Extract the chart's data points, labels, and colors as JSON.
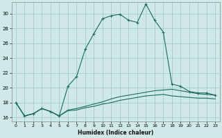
{
  "xlabel": "Humidex (Indice chaleur)",
  "background_color": "#cfe8e8",
  "grid_color": "#aacfcf",
  "line_color": "#1a6b5a",
  "xlim": [
    -0.5,
    23.5
  ],
  "ylim": [
    15.5,
    31.5
  ],
  "yticks": [
    16,
    18,
    20,
    22,
    24,
    26,
    28,
    30
  ],
  "xticks": [
    0,
    1,
    2,
    3,
    4,
    5,
    6,
    7,
    8,
    9,
    10,
    11,
    12,
    13,
    14,
    15,
    16,
    17,
    18,
    19,
    20,
    21,
    22,
    23
  ],
  "main_curve_x": [
    0,
    1,
    2,
    3,
    4,
    5,
    6,
    7,
    8,
    9,
    10,
    11,
    12,
    13,
    14,
    15,
    16,
    17,
    18,
    19,
    20,
    21,
    22,
    23
  ],
  "main_curve_y": [
    18.0,
    16.2,
    16.5,
    17.2,
    16.8,
    16.2,
    20.2,
    21.5,
    25.2,
    27.3,
    29.3,
    29.7,
    29.9,
    29.1,
    28.8,
    31.3,
    29.1,
    27.5,
    20.5,
    20.2,
    19.5,
    19.3,
    19.3,
    19.0
  ],
  "lower_curve1_x": [
    0,
    1,
    2,
    3,
    4,
    5,
    6,
    7,
    8,
    9,
    10,
    11,
    12,
    13,
    14,
    15,
    16,
    17,
    18,
    19,
    20,
    21,
    22,
    23
  ],
  "lower_curve1_y": [
    18.0,
    16.2,
    16.5,
    17.2,
    16.8,
    16.2,
    17.0,
    17.2,
    17.5,
    17.8,
    18.1,
    18.5,
    18.8,
    19.0,
    19.2,
    19.4,
    19.6,
    19.7,
    19.8,
    19.6,
    19.4,
    19.2,
    19.1,
    19.0
  ],
  "lower_curve2_x": [
    0,
    1,
    2,
    3,
    4,
    5,
    6,
    7,
    8,
    9,
    10,
    11,
    12,
    13,
    14,
    15,
    16,
    17,
    18,
    19,
    20,
    21,
    22,
    23
  ],
  "lower_curve2_y": [
    18.0,
    16.2,
    16.5,
    17.2,
    16.8,
    16.2,
    16.9,
    17.0,
    17.3,
    17.5,
    17.8,
    18.0,
    18.3,
    18.5,
    18.7,
    18.9,
    19.0,
    19.1,
    18.9,
    18.8,
    18.7,
    18.6,
    18.6,
    18.5
  ]
}
